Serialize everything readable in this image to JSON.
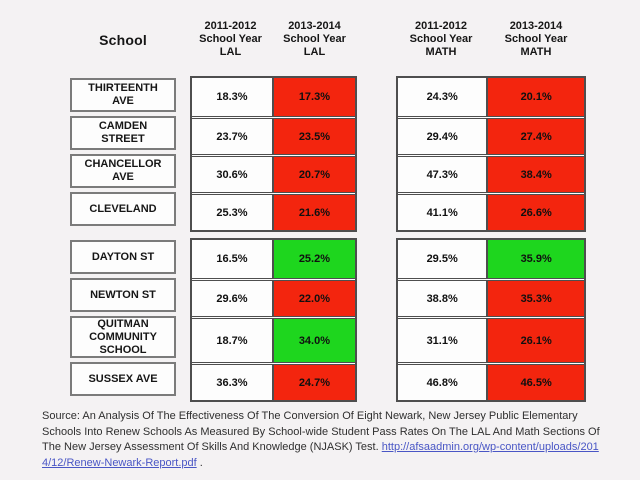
{
  "page": {
    "background_color": "#f4f2f3"
  },
  "header": {
    "school_label": "School",
    "columns": [
      {
        "year": "2011-2012",
        "label": "School Year",
        "subject": "LAL"
      },
      {
        "year": "2013-2014",
        "label": "School Year",
        "subject": "LAL"
      },
      {
        "year": "2011-2012",
        "label": "School Year",
        "subject": "MATH"
      },
      {
        "year": "2013-2014",
        "label": "School Year",
        "subject": "MATH"
      }
    ]
  },
  "colors": {
    "decline_red": "#f3250e",
    "improve_green": "#1ed61e",
    "cell_background": "#fdfdfd",
    "link_blue": "#4956c5"
  },
  "table": {
    "rows": [
      {
        "school": "THIRTEENTH AVE",
        "lal_2011": "18.3%",
        "lal_2013": "17.3%",
        "lal_2013_color": "red",
        "math_2011": "24.3%",
        "math_2013": "20.1%",
        "math_2013_color": "red"
      },
      {
        "school": "CAMDEN STREET",
        "lal_2011": "23.7%",
        "lal_2013": "23.5%",
        "lal_2013_color": "red",
        "math_2011": "29.4%",
        "math_2013": "27.4%",
        "math_2013_color": "red"
      },
      {
        "school": "CHANCELLOR AVE",
        "lal_2011": "30.6%",
        "lal_2013": "20.7%",
        "lal_2013_color": "red",
        "math_2011": "47.3%",
        "math_2013": "38.4%",
        "math_2013_color": "red"
      },
      {
        "school": "CLEVELAND",
        "lal_2011": "25.3%",
        "lal_2013": "21.6%",
        "lal_2013_color": "red",
        "math_2011": "41.1%",
        "math_2013": "26.6%",
        "math_2013_color": "red"
      },
      {
        "school": "DAYTON ST",
        "lal_2011": "16.5%",
        "lal_2013": "25.2%",
        "lal_2013_color": "green",
        "math_2011": "29.5%",
        "math_2013": "35.9%",
        "math_2013_color": "green"
      },
      {
        "school": "NEWTON ST",
        "lal_2011": "29.6%",
        "lal_2013": "22.0%",
        "lal_2013_color": "red",
        "math_2011": "38.8%",
        "math_2013": "35.3%",
        "math_2013_color": "red"
      },
      {
        "school": "QUITMAN COMMUNITY SCHOOL",
        "lal_2011": "18.7%",
        "lal_2013": "34.0%",
        "lal_2013_color": "green",
        "math_2011": "31.1%",
        "math_2013": "26.1%",
        "math_2013_color": "red"
      },
      {
        "school": "SUSSEX AVE",
        "lal_2011": "36.3%",
        "lal_2013": "24.7%",
        "lal_2013_color": "red",
        "math_2011": "46.8%",
        "math_2013": "46.5%",
        "math_2013_color": "red"
      }
    ]
  },
  "footer": {
    "text_before_link": "Source: An Analysis Of The Effectiveness Of The Conversion Of Eight Newark, New Jersey Public Elementary Schools Into Renew Schools As Measured By School-wide Student Pass Rates On The LAL And Math Sections Of The New Jersey Assessment Of Skills And Knowledge (NJASK) Test. ",
    "link_text": "http://afsaadmin.org/wp-content/uploads/2014/12/Renew-Newark-Report.pdf",
    "text_after_link": " ."
  },
  "chart_data": {
    "type": "table",
    "title": "",
    "units": "percent pass rate",
    "columns": [
      "School",
      "2011-2012 School Year LAL",
      "2013-2014 School Year LAL",
      "2011-2012 School Year MATH",
      "2013-2014 School Year MATH"
    ],
    "rows": [
      {
        "school": "THIRTEENTH AVE",
        "lal_2011_2012": 18.3,
        "lal_2013_2014": 17.3,
        "math_2011_2012": 24.3,
        "math_2013_2014": 20.1,
        "lal_2013_cell_color": "red",
        "math_2013_cell_color": "red"
      },
      {
        "school": "CAMDEN STREET",
        "lal_2011_2012": 23.7,
        "lal_2013_2014": 23.5,
        "math_2011_2012": 29.4,
        "math_2013_2014": 27.4,
        "lal_2013_cell_color": "red",
        "math_2013_cell_color": "red"
      },
      {
        "school": "CHANCELLOR AVE",
        "lal_2011_2012": 30.6,
        "lal_2013_2014": 20.7,
        "math_2011_2012": 47.3,
        "math_2013_2014": 38.4,
        "lal_2013_cell_color": "red",
        "math_2013_cell_color": "red"
      },
      {
        "school": "CLEVELAND",
        "lal_2011_2012": 25.3,
        "lal_2013_2014": 21.6,
        "math_2011_2012": 41.1,
        "math_2013_2014": 26.6,
        "lal_2013_cell_color": "red",
        "math_2013_cell_color": "red"
      },
      {
        "school": "DAYTON ST",
        "lal_2011_2012": 16.5,
        "lal_2013_2014": 25.2,
        "math_2011_2012": 29.5,
        "math_2013_2014": 35.9,
        "lal_2013_cell_color": "green",
        "math_2013_cell_color": "green"
      },
      {
        "school": "NEWTON ST",
        "lal_2011_2012": 29.6,
        "lal_2013_2014": 22.0,
        "math_2011_2012": 38.8,
        "math_2013_2014": 35.3,
        "lal_2013_cell_color": "red",
        "math_2013_cell_color": "red"
      },
      {
        "school": "QUITMAN COMMUNITY SCHOOL",
        "lal_2011_2012": 18.7,
        "lal_2013_2014": 34.0,
        "math_2011_2012": 31.1,
        "math_2013_2014": 26.1,
        "lal_2013_cell_color": "green",
        "math_2013_cell_color": "red"
      },
      {
        "school": "SUSSEX AVE",
        "lal_2011_2012": 36.3,
        "lal_2013_2014": 24.7,
        "math_2011_2012": 46.8,
        "math_2013_2014": 46.5,
        "lal_2013_cell_color": "red",
        "math_2013_cell_color": "red"
      }
    ]
  }
}
